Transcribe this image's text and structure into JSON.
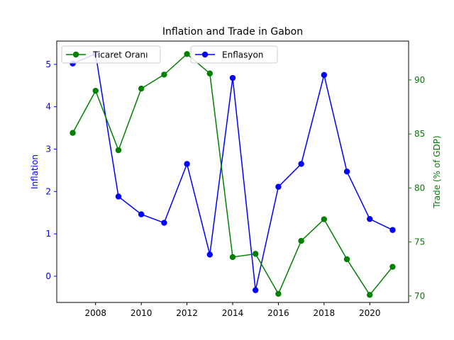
{
  "chart_data": {
    "type": "line",
    "title": "Inflation and Trade in Gabon",
    "x": [
      2007,
      2008,
      2009,
      2010,
      2011,
      2012,
      2013,
      2014,
      2015,
      2016,
      2017,
      2018,
      2019,
      2020,
      2021
    ],
    "x_ticks": [
      "2008",
      "2010",
      "2012",
      "2014",
      "2016",
      "2018",
      "2020"
    ],
    "xlim": [
      2006.3,
      2021.7
    ],
    "left_axis": {
      "label": "Inflation",
      "color": "#0000ff",
      "ylim": [
        -0.62,
        5.55
      ],
      "ticks": [
        "0",
        "1",
        "2",
        "3",
        "4",
        "5"
      ]
    },
    "right_axis": {
      "label": "Trade (% of GDP)",
      "color": "#008000",
      "ylim": [
        69.4,
        93.6
      ],
      "ticks": [
        "70",
        "75",
        "80",
        "85",
        "90"
      ]
    },
    "series": [
      {
        "name": "Enflasyon",
        "axis": "left",
        "color": "#0000ff",
        "values": [
          5.02,
          5.25,
          1.88,
          1.46,
          1.26,
          2.65,
          0.51,
          4.68,
          -0.33,
          2.11,
          2.65,
          4.75,
          2.47,
          1.35,
          1.09
        ]
      },
      {
        "name": "Ticaret Oranı",
        "axis": "right",
        "color": "#008000",
        "values": [
          85.1,
          89.0,
          83.5,
          89.2,
          90.5,
          92.4,
          90.6,
          73.6,
          73.9,
          70.2,
          75.1,
          77.1,
          73.4,
          70.1,
          72.7
        ]
      }
    ],
    "legends": [
      {
        "placement": "upper-left",
        "series": 1
      },
      {
        "placement": "upper-center",
        "series": 0
      }
    ],
    "grid": false
  }
}
